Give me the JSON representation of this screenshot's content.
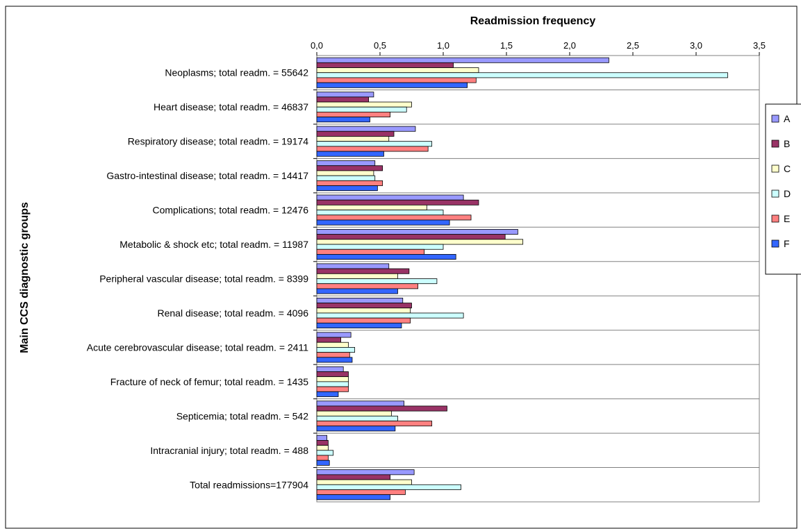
{
  "chart_data": {
    "type": "bar",
    "orientation": "horizontal",
    "xlabel": "Readmission frequency",
    "ylabel": "Main CCS diagnostic groups",
    "xlim": [
      0,
      3.5
    ],
    "x_ticks": [
      "0,0",
      "0,5",
      "1,0",
      "1,5",
      "2,0",
      "2,5",
      "3,0",
      "3,5"
    ],
    "legend_position": "right",
    "grid": "horizontal category separators",
    "categories": [
      "Neoplasms;  total readm. = 55642",
      "Heart disease;  total readm. = 46837",
      "Respiratory disease;  total readm. = 19174",
      "Gastro-intestinal disease;  total readm. = 14417",
      "Complications;  total readm. = 12476",
      "Metabolic & shock etc;  total readm. = 11987",
      "Peripheral vascular disease;  total readm. = 8399",
      "Renal disease;  total readm. = 4096",
      "Acute cerebrovascular disease;  total readm. = 2411",
      "Fracture of neck of femur;  total readm. = 1435",
      "Septicemia;  total readm. = 542",
      "Intracranial injury;  total readm. = 488",
      "Total readmissions=177904"
    ],
    "series": [
      {
        "name": "A",
        "color": "#9999ff",
        "values": [
          2.31,
          0.45,
          0.78,
          0.46,
          1.16,
          1.59,
          0.57,
          0.68,
          0.27,
          0.21,
          0.69,
          0.08,
          0.77
        ]
      },
      {
        "name": "B",
        "color": "#993366",
        "values": [
          1.08,
          0.41,
          0.61,
          0.52,
          1.28,
          1.49,
          0.73,
          0.75,
          0.19,
          0.25,
          1.03,
          0.09,
          0.58
        ]
      },
      {
        "name": "C",
        "color": "#ffffcc",
        "values": [
          1.28,
          0.75,
          0.57,
          0.45,
          0.87,
          1.63,
          0.64,
          0.74,
          0.25,
          0.25,
          0.59,
          0.09,
          0.75
        ]
      },
      {
        "name": "D",
        "color": "#ccffff",
        "values": [
          3.25,
          0.71,
          0.91,
          0.46,
          1.0,
          1.0,
          0.95,
          1.16,
          0.3,
          0.25,
          0.64,
          0.13,
          1.14
        ]
      },
      {
        "name": "E",
        "color": "#ff8080",
        "values": [
          1.26,
          0.58,
          0.88,
          0.52,
          1.22,
          0.85,
          0.8,
          0.74,
          0.26,
          0.25,
          0.91,
          0.09,
          0.7
        ]
      },
      {
        "name": "F",
        "color": "#3366ff",
        "values": [
          1.19,
          0.42,
          0.53,
          0.48,
          1.05,
          1.1,
          0.64,
          0.67,
          0.28,
          0.17,
          0.62,
          0.1,
          0.58
        ]
      }
    ]
  }
}
